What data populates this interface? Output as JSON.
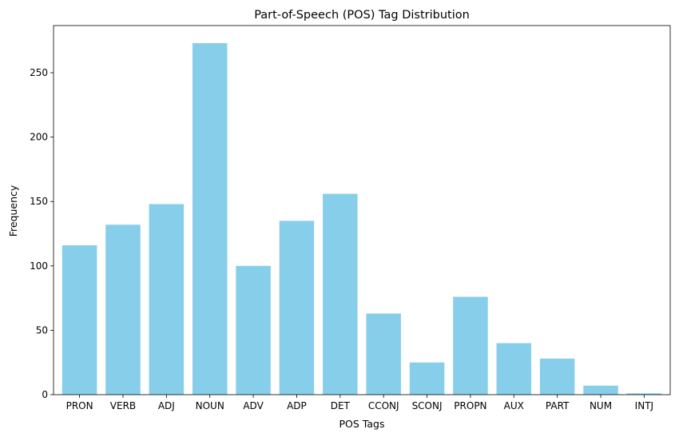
{
  "chart_data": {
    "type": "bar",
    "title": "Part-of-Speech (POS) Tag Distribution",
    "xlabel": "POS Tags",
    "ylabel": "Frequency",
    "categories": [
      "PRON",
      "VERB",
      "ADJ",
      "NOUN",
      "ADV",
      "ADP",
      "DET",
      "CCONJ",
      "SCONJ",
      "PROPN",
      "AUX",
      "PART",
      "NUM",
      "INTJ"
    ],
    "values": [
      116,
      132,
      148,
      273,
      100,
      135,
      156,
      63,
      25,
      76,
      40,
      28,
      7,
      1
    ],
    "ylim": [
      0,
      286.65
    ],
    "yticks": [
      0,
      50,
      100,
      150,
      200,
      250
    ],
    "bar_color": "#87CEEB",
    "grid": false,
    "legend": "none"
  }
}
